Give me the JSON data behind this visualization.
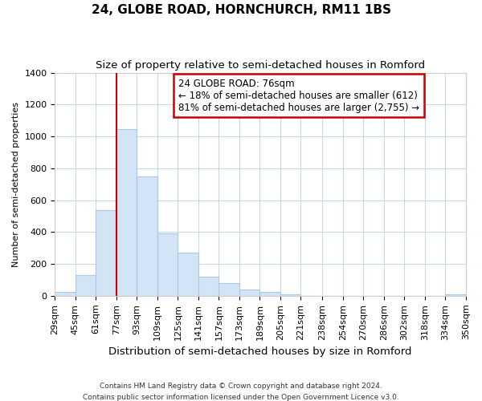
{
  "title": "24, GLOBE ROAD, HORNCHURCH, RM11 1BS",
  "subtitle": "Size of property relative to semi-detached houses in Romford",
  "xlabel": "Distribution of semi-detached houses by size in Romford",
  "ylabel": "Number of semi-detached properties",
  "footer_line1": "Contains HM Land Registry data © Crown copyright and database right 2024.",
  "footer_line2": "Contains public sector information licensed under the Open Government Licence v3.0.",
  "annotation_title": "24 GLOBE ROAD: 76sqm",
  "annotation_line1": "← 18% of semi-detached houses are smaller (612)",
  "annotation_line2": "81% of semi-detached houses are larger (2,755) →",
  "bin_edges": [
    29,
    45,
    61,
    77,
    93,
    109,
    125,
    141,
    157,
    173,
    189,
    205,
    221,
    238,
    254,
    270,
    286,
    302,
    318,
    334,
    350
  ],
  "bar_heights": [
    25,
    130,
    540,
    1045,
    750,
    390,
    270,
    120,
    80,
    40,
    25,
    10,
    0,
    0,
    0,
    0,
    0,
    0,
    0,
    10
  ],
  "bar_fill_color": "#d4e4f7",
  "bar_edge_color": "#a8c8e8",
  "grid_color": "#c8d8ec",
  "vline_x": 77,
  "vline_color": "#cc0000",
  "annotation_edge_color": "#cc0000",
  "ylim": [
    0,
    1400
  ],
  "yticks": [
    0,
    200,
    400,
    600,
    800,
    1000,
    1200,
    1400
  ],
  "bg_color": "#ffffff",
  "plot_bg_color": "#ffffff",
  "title_fontsize": 11,
  "subtitle_fontsize": 9.5,
  "ylabel_fontsize": 8,
  "xlabel_fontsize": 9.5,
  "tick_fontsize": 8,
  "annotation_fontsize": 8.5
}
